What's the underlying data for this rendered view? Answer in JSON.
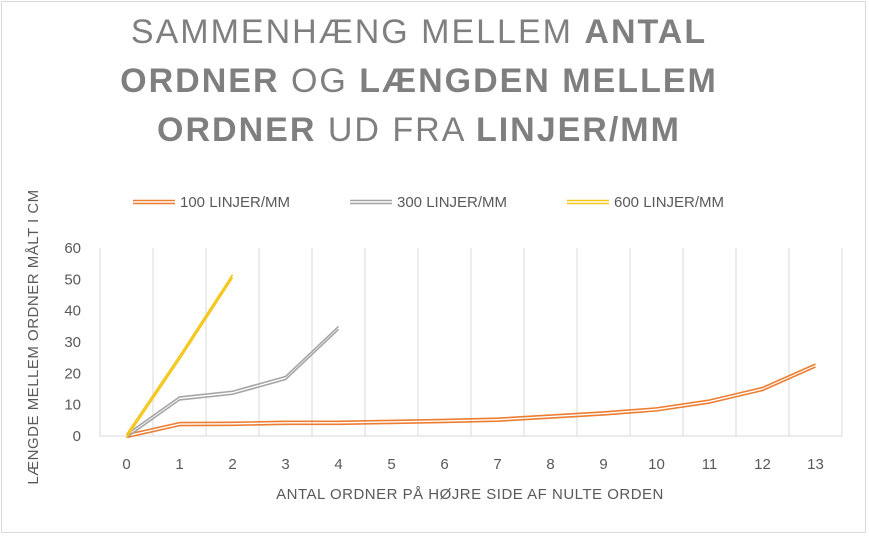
{
  "chart_data": {
    "type": "line",
    "title_lines": [
      [
        {
          "text": "SAMMENHÆNG MELLEM ",
          "bold": false
        },
        {
          "text": "ANTAL",
          "bold": true
        }
      ],
      [
        {
          "text": "ORDNER",
          "bold": true
        },
        {
          "text": " OG ",
          "bold": false
        },
        {
          "text": "LÆNGDEN MELLEM",
          "bold": true
        }
      ],
      [
        {
          "text": "ORDNER",
          "bold": true
        },
        {
          "text": " UD FRA ",
          "bold": false
        },
        {
          "text": "LINJER/MM",
          "bold": true
        }
      ]
    ],
    "xlabel": "ANTAL ORDNER PÅ HØJRE SIDE AF NULTE ORDEN",
    "ylabel": "LÆNGDE MELLEM ORDNER MÅLT I CM",
    "x_categories": [
      "0",
      "1",
      "2",
      "3",
      "4",
      "5",
      "6",
      "7",
      "8",
      "9",
      "10",
      "11",
      "12",
      "13"
    ],
    "ylim": [
      0,
      60
    ],
    "y_ticks": [
      "0",
      "10",
      "20",
      "30",
      "40",
      "50",
      "60"
    ],
    "grid": "vertical",
    "legend_position": "top",
    "series": [
      {
        "name": "100 LINJER/MM",
        "color": "#ed7d31",
        "x": [
          0,
          1,
          2,
          3,
          4,
          5,
          6,
          7,
          8,
          9,
          10,
          11,
          12,
          13
        ],
        "y": [
          0,
          3.8,
          3.9,
          4.2,
          4.2,
          4.5,
          4.8,
          5.2,
          6.2,
          7.2,
          8.5,
          11,
          15,
          22.5
        ]
      },
      {
        "name": "300 LINJER/MM",
        "color": "#a5a5a5",
        "x": [
          0,
          1,
          2,
          3,
          4
        ],
        "y": [
          0,
          12,
          13.8,
          18.5,
          34.5
        ]
      },
      {
        "name": "600 LINJER/MM",
        "color": "#f5c518",
        "x": [
          0,
          1,
          2
        ],
        "y": [
          0,
          25,
          51
        ]
      }
    ]
  }
}
